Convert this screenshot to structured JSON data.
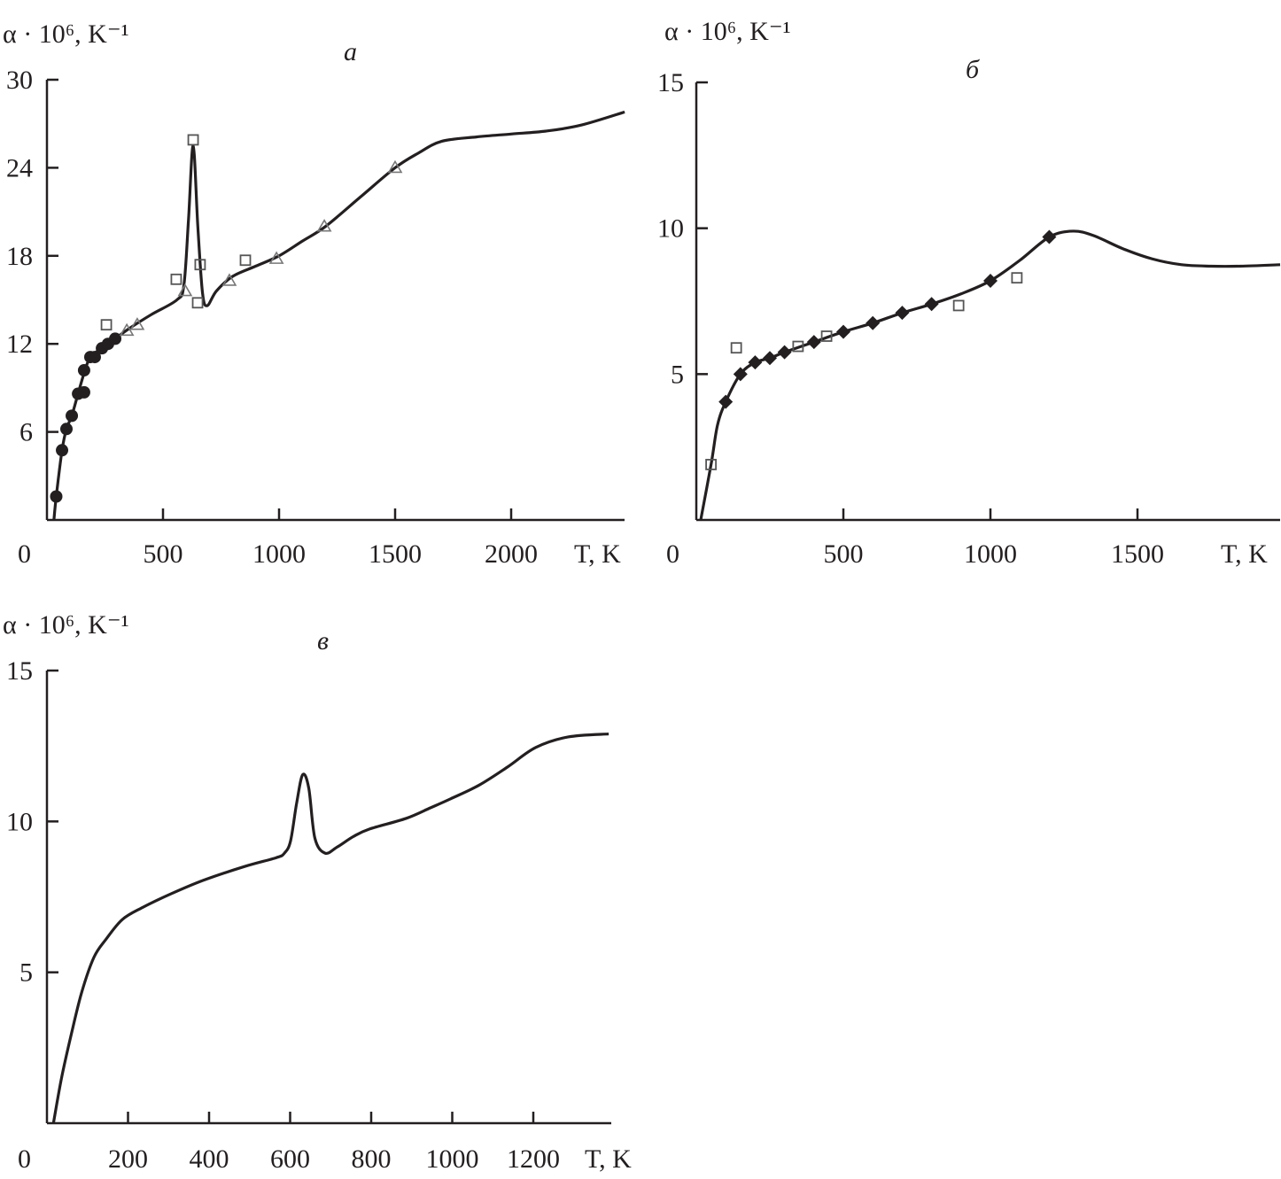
{
  "chart_data": [
    {
      "type": "line",
      "panel_label": "а",
      "ylabel": "α · 10⁶, K⁻¹",
      "xlabel": "T, K",
      "xlim": [
        0,
        2500
      ],
      "ylim": [
        0,
        30
      ],
      "xticks": [
        0,
        500,
        1000,
        1500,
        2000
      ],
      "yticks": [
        6,
        12,
        18,
        24,
        30
      ],
      "grid": false,
      "curve": {
        "x": [
          30,
          40,
          65,
          84,
          107,
          134,
          160,
          187,
          237,
          294,
          350,
          450,
          560,
          590,
          610,
          630,
          650,
          670,
          690,
          730,
          800,
          900,
          1000,
          1100,
          1200,
          1350,
          1500,
          1600,
          1700,
          1850,
          2000,
          2150,
          2300,
          2489
        ],
        "y": [
          0,
          1.6,
          4.75,
          6.2,
          7.1,
          8.6,
          10.0,
          11.1,
          11.7,
          12.35,
          13.0,
          14.0,
          15.0,
          16.0,
          20.5,
          25.5,
          20.0,
          15.5,
          14.6,
          15.6,
          16.6,
          17.3,
          18.0,
          19.0,
          20.0,
          22.0,
          24.0,
          25.0,
          25.8,
          26.1,
          26.3,
          26.5,
          26.9,
          27.8
        ]
      },
      "series": [
        {
          "marker": "circle-filled",
          "x": [
            40,
            65,
            84,
            107,
            134,
            160,
            160,
            187,
            206,
            237,
            263,
            294
          ],
          "y": [
            1.6,
            4.75,
            6.2,
            7.1,
            8.6,
            8.7,
            10.2,
            11.1,
            11.1,
            11.7,
            12.0,
            12.35
          ]
        },
        {
          "marker": "square-open",
          "x": [
            256,
            557,
            630,
            649,
            660,
            855
          ],
          "y": [
            13.3,
            16.4,
            25.9,
            14.8,
            17.4,
            17.7
          ]
        },
        {
          "marker": "triangle-open",
          "x": [
            344,
            389,
            595,
            786,
            989,
            1195,
            1500
          ],
          "y": [
            12.9,
            13.3,
            15.6,
            16.3,
            17.8,
            20.0,
            24.0
          ]
        }
      ]
    },
    {
      "type": "line",
      "panel_label": "б",
      "ylabel": "α · 10⁶, K⁻¹",
      "xlabel": "T, K",
      "xlim": [
        0,
        1985
      ],
      "ylim": [
        0,
        15
      ],
      "xticks": [
        0,
        500,
        1000,
        1500
      ],
      "yticks": [
        5,
        10,
        15
      ],
      "grid": false,
      "curve": {
        "x": [
          15,
          51,
          72,
          100,
          150,
          200,
          250,
          300,
          400,
          500,
          600,
          700,
          800,
          900,
          1000,
          1100,
          1200,
          1280,
          1350,
          1450,
          1550,
          1650,
          1750,
          1850,
          1985
        ],
        "y": [
          0,
          1.95,
          3.25,
          4.05,
          5.0,
          5.4,
          5.55,
          5.75,
          6.1,
          6.45,
          6.75,
          7.1,
          7.4,
          7.75,
          8.2,
          8.9,
          9.7,
          9.9,
          9.75,
          9.3,
          8.95,
          8.75,
          8.7,
          8.7,
          8.75
        ]
      },
      "series": [
        {
          "marker": "diamond-filled",
          "x": [
            100,
            150,
            200,
            250,
            300,
            400,
            500,
            600,
            700,
            800,
            1000,
            1200
          ],
          "y": [
            4.05,
            5.0,
            5.4,
            5.55,
            5.75,
            6.1,
            6.45,
            6.75,
            7.1,
            7.4,
            8.2,
            9.7
          ]
        },
        {
          "marker": "square-open",
          "x": [
            50,
            136,
            346,
            443,
            892,
            1090
          ],
          "y": [
            1.9,
            5.9,
            5.95,
            6.3,
            7.35,
            8.3
          ]
        }
      ]
    },
    {
      "type": "line",
      "panel_label": "в",
      "ylabel": "α · 10⁶, K⁻¹",
      "xlabel": "T, K",
      "xlim": [
        0,
        1390
      ],
      "ylim": [
        0,
        15
      ],
      "xticks": [
        0,
        200,
        400,
        600,
        800,
        1000,
        1200
      ],
      "yticks": [
        5,
        10,
        15
      ],
      "grid": false,
      "curve": {
        "x": [
          16,
          36,
          61,
          86,
          116,
          146,
          186,
          236,
          306,
          386,
          486,
          566,
          586,
          601,
          616,
          631,
          646,
          661,
          686,
          716,
          756,
          796,
          886,
          946,
          996,
          1066,
          1136,
          1206,
          1286,
          1386
        ],
        "y": [
          0,
          1.5,
          3.0,
          4.35,
          5.5,
          6.1,
          6.75,
          7.15,
          7.6,
          8.05,
          8.5,
          8.8,
          8.95,
          9.35,
          10.6,
          11.55,
          11.1,
          9.45,
          8.95,
          9.15,
          9.5,
          9.75,
          10.1,
          10.45,
          10.75,
          11.2,
          11.8,
          12.45,
          12.8,
          12.9
        ]
      },
      "series": []
    }
  ]
}
